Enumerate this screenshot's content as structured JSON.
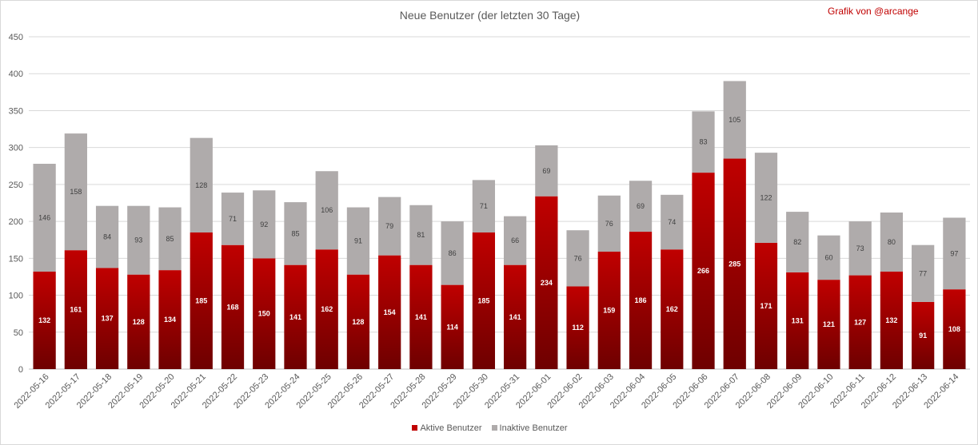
{
  "chart_data": {
    "type": "bar",
    "stacked": true,
    "title": "Neue Benutzer (der letzten 30 Tage)",
    "credit": "Grafik von @arcange",
    "xlabel": "",
    "ylabel": "",
    "ylim": [
      0,
      450
    ],
    "ytick_step": 50,
    "grid": true,
    "legend_position": "bottom",
    "categories": [
      "2022-05-16",
      "2022-05-17",
      "2022-05-18",
      "2022-05-19",
      "2022-05-20",
      "2022-05-21",
      "2022-05-22",
      "2022-05-23",
      "2022-05-24",
      "2022-05-25",
      "2022-05-26",
      "2022-05-27",
      "2022-05-28",
      "2022-05-29",
      "2022-05-30",
      "2022-05-31",
      "2022-06-01",
      "2022-06-02",
      "2022-06-03",
      "2022-06-04",
      "2022-06-05",
      "2022-06-06",
      "2022-06-07",
      "2022-06-08",
      "2022-06-09",
      "2022-06-10",
      "2022-06-11",
      "2022-06-12",
      "2022-06-13",
      "2022-06-14"
    ],
    "series": [
      {
        "name": "Aktive Benutzer",
        "color": "#c00000",
        "values": [
          132,
          161,
          137,
          128,
          134,
          185,
          168,
          150,
          141,
          162,
          128,
          154,
          141,
          114,
          185,
          141,
          234,
          112,
          159,
          186,
          162,
          266,
          285,
          171,
          131,
          121,
          127,
          132,
          91,
          108
        ]
      },
      {
        "name": "Inaktive Benutzer",
        "color": "#afabab",
        "values": [
          146,
          158,
          84,
          93,
          85,
          128,
          71,
          92,
          85,
          106,
          91,
          79,
          81,
          86,
          71,
          66,
          69,
          76,
          76,
          69,
          74,
          83,
          105,
          122,
          82,
          60,
          73,
          80,
          77,
          97
        ]
      }
    ]
  }
}
